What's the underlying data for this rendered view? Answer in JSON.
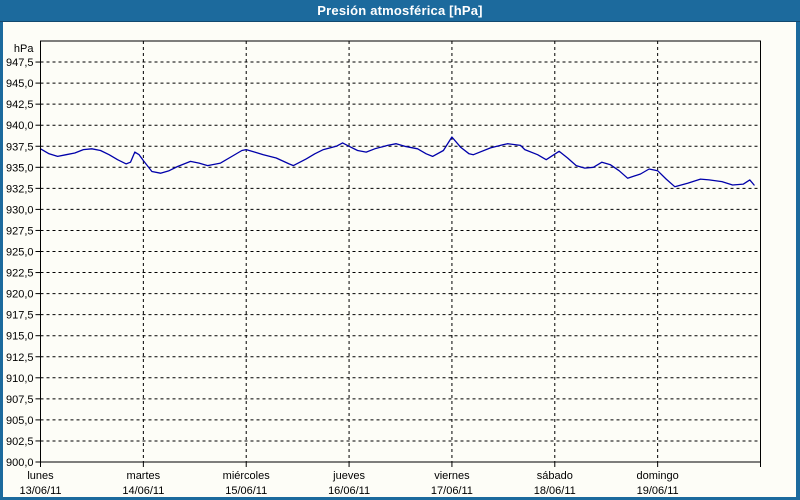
{
  "window": {
    "title": "Presión atmosférica [hPa]"
  },
  "colors": {
    "titlebar": "#1C6A9D",
    "titlebar_text": "#FFFFFF",
    "window_border": "#1C6A9D",
    "plot_background": "#FDFDF7",
    "plot_border": "#000000",
    "grid": "#000000",
    "axis_text": "#000000",
    "line": "#0000AA"
  },
  "chart_data": {
    "type": "line",
    "title": "Presión atmosférica [hPa]",
    "unit_label": "hPa",
    "grid": "dashed",
    "legend": "none",
    "ylim": [
      900,
      950
    ],
    "ytick_labels": [
      "947,5",
      "945,0",
      "942,5",
      "940,0",
      "937,5",
      "935,0",
      "932,5",
      "930,0",
      "927,5",
      "925,0",
      "922,5",
      "920,0",
      "917,5",
      "915,0",
      "912,5",
      "910,0",
      "907,5",
      "905,0",
      "902,5",
      "900,0"
    ],
    "x_axis": {
      "total_hours": 168,
      "days": [
        {
          "name": "lunes",
          "date": "13/06/11"
        },
        {
          "name": "martes",
          "date": "14/06/11"
        },
        {
          "name": "miércoles",
          "date": "15/06/11"
        },
        {
          "name": "jueves",
          "date": "16/06/11"
        },
        {
          "name": "viernes",
          "date": "17/06/11"
        },
        {
          "name": "sábado",
          "date": "18/06/11"
        },
        {
          "name": "domingo",
          "date": "19/06/11"
        }
      ]
    },
    "series": [
      {
        "name": "Presión atmosférica",
        "color": "#0000AA",
        "points_hours_hpa": [
          [
            0,
            937.2
          ],
          [
            2,
            936.6
          ],
          [
            4,
            936.3
          ],
          [
            6,
            936.5
          ],
          [
            8,
            936.7
          ],
          [
            10,
            937.1
          ],
          [
            12,
            937.2
          ],
          [
            14,
            937.0
          ],
          [
            16,
            936.5
          ],
          [
            18,
            935.9
          ],
          [
            20,
            935.4
          ],
          [
            21,
            935.6
          ],
          [
            22,
            936.8
          ],
          [
            23,
            936.5
          ],
          [
            24,
            935.8
          ],
          [
            26,
            934.5
          ],
          [
            28,
            934.3
          ],
          [
            30,
            934.6
          ],
          [
            32,
            935.1
          ],
          [
            35,
            935.7
          ],
          [
            37,
            935.5
          ],
          [
            39,
            935.2
          ],
          [
            42,
            935.5
          ],
          [
            45,
            936.4
          ],
          [
            47,
            937.0
          ],
          [
            48,
            937.1
          ],
          [
            50,
            936.8
          ],
          [
            52,
            936.5
          ],
          [
            55,
            936.1
          ],
          [
            58,
            935.4
          ],
          [
            59,
            935.2
          ],
          [
            62,
            936.0
          ],
          [
            64,
            936.6
          ],
          [
            66,
            937.1
          ],
          [
            69,
            937.5
          ],
          [
            70.5,
            937.9
          ],
          [
            72,
            937.5
          ],
          [
            74,
            937.0
          ],
          [
            76,
            936.8
          ],
          [
            78,
            937.2
          ],
          [
            81,
            937.6
          ],
          [
            83,
            937.8
          ],
          [
            85,
            937.5
          ],
          [
            88,
            937.2
          ],
          [
            90,
            936.6
          ],
          [
            91.5,
            936.3
          ],
          [
            94,
            937.0
          ],
          [
            96,
            938.6
          ],
          [
            98,
            937.4
          ],
          [
            100,
            936.6
          ],
          [
            101,
            936.5
          ],
          [
            105,
            937.3
          ],
          [
            108,
            937.7
          ],
          [
            109,
            937.8
          ],
          [
            112,
            937.6
          ],
          [
            113,
            937.1
          ],
          [
            116,
            936.5
          ],
          [
            118,
            935.9
          ],
          [
            121,
            936.9
          ],
          [
            123,
            936.1
          ],
          [
            125,
            935.2
          ],
          [
            127,
            934.9
          ],
          [
            129,
            935.0
          ],
          [
            131,
            935.6
          ],
          [
            133,
            935.3
          ],
          [
            135,
            934.6
          ],
          [
            137,
            933.7
          ],
          [
            140,
            934.2
          ],
          [
            142,
            934.8
          ],
          [
            144,
            934.6
          ],
          [
            146,
            933.6
          ],
          [
            148,
            932.7
          ],
          [
            151,
            933.1
          ],
          [
            154,
            933.6
          ],
          [
            156,
            933.5
          ],
          [
            159,
            933.3
          ],
          [
            161.5,
            932.9
          ],
          [
            164,
            933.0
          ],
          [
            165.5,
            933.5
          ],
          [
            166.5,
            932.9
          ]
        ]
      }
    ]
  }
}
